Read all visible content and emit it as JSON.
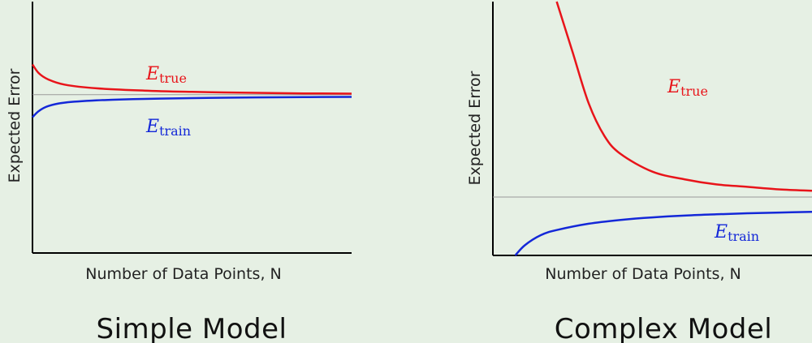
{
  "colors": {
    "true_curve": "#e8141a",
    "train_curve": "#1428d8",
    "asymptote": "#9a9a9a",
    "background": "#e6f0e4"
  },
  "chart_data": [
    {
      "type": "line",
      "title": "Simple Model",
      "xlabel": "Number of Data Points, N",
      "ylabel": "Expected Error",
      "grid": false,
      "asymptote": 0.63,
      "series": [
        {
          "name": "E_true",
          "label_main": "E",
          "label_sub": "true",
          "x": [
            0.0,
            0.02,
            0.05,
            0.1,
            0.2,
            0.35,
            0.5,
            0.7,
            0.85,
            1.0
          ],
          "y": [
            0.75,
            0.715,
            0.69,
            0.67,
            0.655,
            0.646,
            0.641,
            0.637,
            0.635,
            0.634
          ]
        },
        {
          "name": "E_train",
          "label_main": "E",
          "label_sub": "train",
          "x": [
            0.0,
            0.02,
            0.05,
            0.1,
            0.2,
            0.35,
            0.5,
            0.7,
            0.85,
            1.0
          ],
          "y": [
            0.54,
            0.565,
            0.585,
            0.598,
            0.607,
            0.613,
            0.616,
            0.619,
            0.62,
            0.621
          ]
        }
      ]
    },
    {
      "type": "line",
      "title": "Complex Model",
      "xlabel": "Number of Data Points, N",
      "ylabel": "Expected Error",
      "grid": false,
      "asymptote": 0.23,
      "series": [
        {
          "name": "E_true",
          "label_main": "E",
          "label_sub": "true",
          "x": [
            0.2,
            0.25,
            0.3,
            0.35,
            0.4,
            0.5,
            0.6,
            0.7,
            0.8,
            0.9,
            1.0
          ],
          "y": [
            1.0,
            0.8,
            0.6,
            0.47,
            0.4,
            0.33,
            0.3,
            0.28,
            0.27,
            0.26,
            0.255
          ]
        },
        {
          "name": "E_train",
          "label_main": "E",
          "label_sub": "train",
          "x": [
            0.07,
            0.1,
            0.15,
            0.2,
            0.3,
            0.4,
            0.5,
            0.6,
            0.7,
            0.8,
            0.9,
            1.0
          ],
          "y": [
            0.0,
            0.04,
            0.08,
            0.1,
            0.125,
            0.14,
            0.15,
            0.157,
            0.162,
            0.166,
            0.169,
            0.172
          ]
        }
      ]
    }
  ]
}
